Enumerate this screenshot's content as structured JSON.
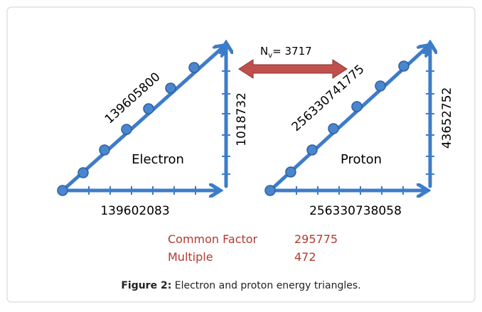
{
  "nv": {
    "symbol": "N",
    "subscript": "v",
    "value": "= 3717"
  },
  "electron": {
    "hypotenuse": "139605800",
    "vertical": "1018732",
    "horizontal": "139602083",
    "label": "Electron"
  },
  "proton": {
    "hypotenuse": "256330741775",
    "vertical": "43652752",
    "horizontal": "256330738058",
    "label": "Proton"
  },
  "factors": [
    {
      "label": "Common Factor",
      "value": "295775"
    },
    {
      "label": "Multiple",
      "value": "472"
    }
  ],
  "caption": {
    "prefix": "Figure 2:",
    "text": "Electron and proton energy triangles."
  }
}
